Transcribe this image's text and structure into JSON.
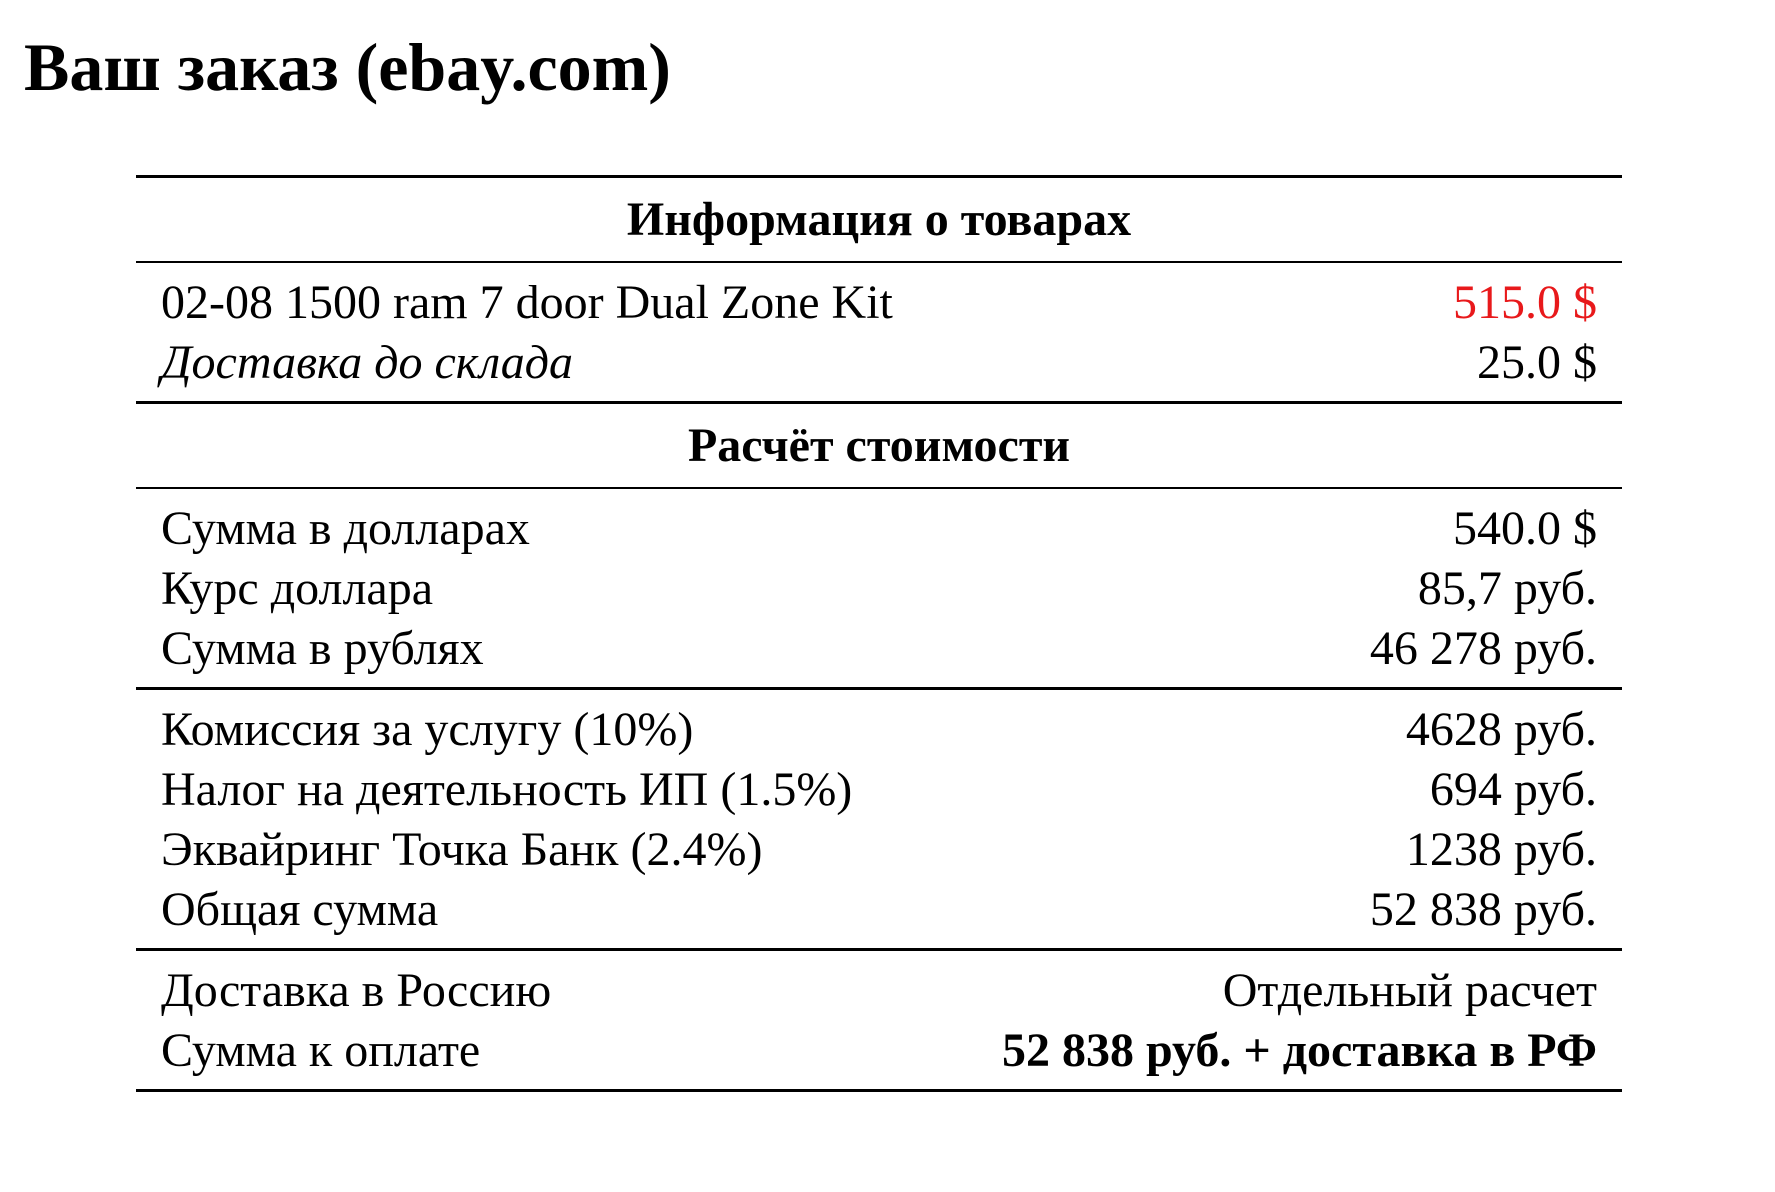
{
  "page": {
    "title": "Ваш заказ (ebay.com)"
  },
  "colors": {
    "accent": "#e8191b",
    "text": "#000000"
  },
  "products_section": {
    "heading": "Информация о товарах",
    "item": {
      "label": "02-08 1500 ram 7 door Dual Zone Kit",
      "value": "515.0 $"
    },
    "warehouse_delivery": {
      "label": "Доставка до склада",
      "value": "25.0 $"
    }
  },
  "cost_section": {
    "heading": "Расчёт стоимости",
    "conversion": [
      {
        "label": "Сумма в долларах",
        "value": "540.0 $"
      },
      {
        "label": "Курс доллара",
        "value": "85,7 руб."
      },
      {
        "label": "Сумма в рублях",
        "value": "46 278 руб."
      }
    ],
    "fees": [
      {
        "label": "Комиссия за услугу (10%)",
        "value": "4628 руб."
      },
      {
        "label": "Налог на деятельность ИП (1.5%)",
        "value": "694 руб."
      },
      {
        "label": "Эквайринг Точка Банк (2.4%)",
        "value": "1238 руб."
      },
      {
        "label": "Общая сумма",
        "value": "52 838 руб."
      }
    ],
    "final": [
      {
        "label": "Доставка в Россию",
        "value": "Отдельный расчет"
      },
      {
        "label": "Сумма к оплате",
        "value": "52 838 руб. + доставка в РФ"
      }
    ]
  }
}
